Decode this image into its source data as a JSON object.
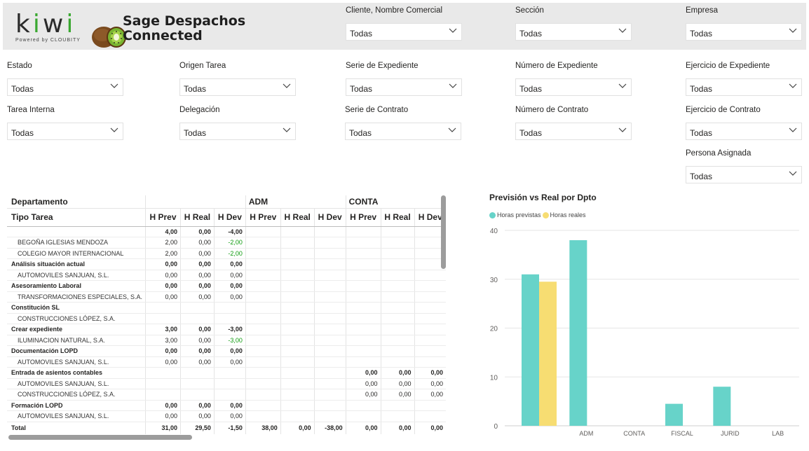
{
  "header": {
    "title_line1": "Sage Despachos",
    "title_line2": "Connected",
    "logo_word": "kiwi",
    "logo_powered": "Powered  by  CLOUBITY"
  },
  "slicers": [
    {
      "label": "Cliente, Nombre Comercial",
      "value": "Todas"
    },
    {
      "label": "Sección",
      "value": "Todas"
    },
    {
      "label": "Empresa",
      "value": "Todas"
    },
    {
      "label": "Estado",
      "value": "Todas"
    },
    {
      "label": "Origen Tarea",
      "value": "Todas"
    },
    {
      "label": "Serie de Expediente",
      "value": "Todas"
    },
    {
      "label": "Número de Expediente",
      "value": "Todas"
    },
    {
      "label": "Ejercicio de Expediente",
      "value": "Todas"
    },
    {
      "label": "Tarea Interna",
      "value": "Todas"
    },
    {
      "label": "Delegación",
      "value": "Todas"
    },
    {
      "label": "Serie de Contrato",
      "value": "Todas"
    },
    {
      "label": "Número de Contrato",
      "value": "Todas"
    },
    {
      "label": "Ejercicio de Contrato",
      "value": "Todas"
    },
    {
      "label": "Persona Asignada",
      "value": "Todas"
    }
  ],
  "matrix": {
    "row_header_1": "Departamento",
    "row_header_2": "Tipo Tarea",
    "departments": [
      "",
      "ADM",
      "CONTA"
    ],
    "measures": [
      "H Prev",
      "H Real",
      "H Dev"
    ],
    "rows": [
      {
        "label": "",
        "kind": "parent",
        "cells": [
          "4,00",
          "0,00",
          "-4,00",
          "",
          "",
          "",
          "",
          "",
          ""
        ]
      },
      {
        "label": "BEGOÑA IGLESIAS MENDOZA",
        "kind": "child",
        "cells": [
          "2,00",
          "0,00",
          "-2,00",
          "",
          "",
          "",
          "",
          "",
          ""
        ]
      },
      {
        "label": "COLEGIO MAYOR INTERNACIONAL",
        "kind": "child",
        "cells": [
          "2,00",
          "0,00",
          "-2,00",
          "",
          "",
          "",
          "",
          "",
          ""
        ]
      },
      {
        "label": "Análisis situación actual",
        "kind": "parent",
        "cells": [
          "0,00",
          "0,00",
          "0,00",
          "",
          "",
          "",
          "",
          "",
          ""
        ]
      },
      {
        "label": "AUTOMOVILES SANJUAN, S.L.",
        "kind": "child",
        "cells": [
          "0,00",
          "0,00",
          "0,00",
          "",
          "",
          "",
          "",
          "",
          ""
        ]
      },
      {
        "label": "Asesoramiento Laboral",
        "kind": "parent",
        "cells": [
          "0,00",
          "0,00",
          "0,00",
          "",
          "",
          "",
          "",
          "",
          ""
        ]
      },
      {
        "label": "TRANSFORMACIONES ESPECIALES, S.A.",
        "kind": "child",
        "cells": [
          "0,00",
          "0,00",
          "0,00",
          "",
          "",
          "",
          "",
          "",
          ""
        ]
      },
      {
        "label": "Constitución SL",
        "kind": "parent",
        "cells": [
          "",
          "",
          "",
          "",
          "",
          "",
          "",
          "",
          ""
        ]
      },
      {
        "label": "CONSTRUCCIONES LÓPEZ, S.A.",
        "kind": "child",
        "cells": [
          "",
          "",
          "",
          "",
          "",
          "",
          "",
          "",
          ""
        ]
      },
      {
        "label": "Crear expediente",
        "kind": "parent",
        "cells": [
          "3,00",
          "0,00",
          "-3,00",
          "",
          "",
          "",
          "",
          "",
          ""
        ]
      },
      {
        "label": "ILUMINACION NATURAL, S.A.",
        "kind": "child",
        "cells": [
          "3,00",
          "0,00",
          "-3,00",
          "",
          "",
          "",
          "",
          "",
          ""
        ]
      },
      {
        "label": "Documentación LOPD",
        "kind": "parent",
        "cells": [
          "0,00",
          "0,00",
          "0,00",
          "",
          "",
          "",
          "",
          "",
          ""
        ]
      },
      {
        "label": "AUTOMOVILES SANJUAN, S.L.",
        "kind": "child",
        "cells": [
          "0,00",
          "0,00",
          "0,00",
          "",
          "",
          "",
          "",
          "",
          ""
        ]
      },
      {
        "label": "Entrada de asientos contables",
        "kind": "parent",
        "cells": [
          "",
          "",
          "",
          "",
          "",
          "",
          "0,00",
          "0,00",
          "0,00"
        ]
      },
      {
        "label": "AUTOMOVILES SANJUAN, S.L.",
        "kind": "child",
        "cells": [
          "",
          "",
          "",
          "",
          "",
          "",
          "0,00",
          "0,00",
          "0,00"
        ]
      },
      {
        "label": "CONSTRUCCIONES LÓPEZ, S.A.",
        "kind": "child",
        "cells": [
          "",
          "",
          "",
          "",
          "",
          "",
          "0,00",
          "0,00",
          "0,00"
        ]
      },
      {
        "label": "Formación LOPD",
        "kind": "parent",
        "cells": [
          "0,00",
          "0,00",
          "0,00",
          "",
          "",
          "",
          "",
          "",
          ""
        ]
      },
      {
        "label": "AUTOMOVILES SANJUAN, S.L.",
        "kind": "child",
        "cells": [
          "0,00",
          "0,00",
          "0,00",
          "",
          "",
          "",
          "",
          "",
          ""
        ]
      }
    ],
    "total": {
      "label": "Total",
      "cells": [
        "31,00",
        "29,50",
        "-1,50",
        "38,00",
        "0,00",
        "-38,00",
        "0,00",
        "0,00",
        "0,00"
      ]
    }
  },
  "colors": {
    "prev": "#67d3c9",
    "real": "#f7dd72",
    "green": "#0d9a0d"
  },
  "chart_data": {
    "type": "bar",
    "title": "Previsión vs Real por Dpto",
    "categories": [
      "",
      "ADM",
      "CONTA",
      "FISCAL",
      "JURID",
      "LAB"
    ],
    "series": [
      {
        "name": "Horas previstas",
        "values": [
          31,
          38,
          0,
          4.5,
          8,
          0
        ]
      },
      {
        "name": "Horas reales",
        "values": [
          29.5,
          0,
          0,
          0,
          0,
          0
        ]
      }
    ],
    "ylim": [
      0,
      40
    ],
    "yticks": [
      0,
      10,
      20,
      30,
      40
    ],
    "grid": true,
    "legend": "top-left"
  }
}
